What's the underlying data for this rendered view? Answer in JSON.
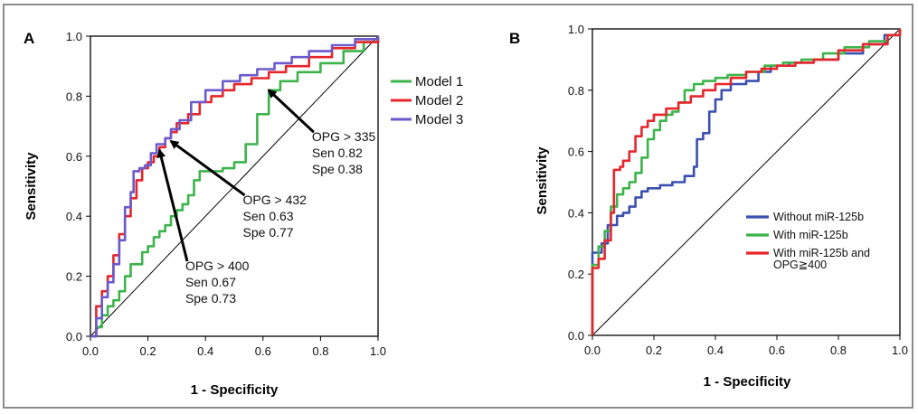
{
  "chart_data": [
    {
      "panel_label": "A",
      "type": "line",
      "xlabel": "1 - Specificity",
      "ylabel": "Sensitivity",
      "xlim": [
        0,
        1
      ],
      "ylim": [
        0,
        1
      ],
      "xticks": [
        "0.0",
        "0.2",
        "0.4",
        "0.6",
        "0.8",
        "1.0"
      ],
      "yticks": [
        "0.0",
        "0.2",
        "0.4",
        "0.6",
        "0.8",
        "1.0"
      ],
      "legend_position": "right",
      "series": [
        {
          "name": "Model 1",
          "color": "#3cb44b",
          "points": [
            [
              0,
              0
            ],
            [
              0.02,
              0.03
            ],
            [
              0.04,
              0.07
            ],
            [
              0.06,
              0.1
            ],
            [
              0.08,
              0.12
            ],
            [
              0.1,
              0.15
            ],
            [
              0.12,
              0.2
            ],
            [
              0.14,
              0.24
            ],
            [
              0.16,
              0.24
            ],
            [
              0.18,
              0.28
            ],
            [
              0.2,
              0.3
            ],
            [
              0.22,
              0.33
            ],
            [
              0.24,
              0.35
            ],
            [
              0.26,
              0.37
            ],
            [
              0.28,
              0.4
            ],
            [
              0.3,
              0.42
            ],
            [
              0.32,
              0.44
            ],
            [
              0.34,
              0.47
            ],
            [
              0.36,
              0.52
            ],
            [
              0.38,
              0.55
            ],
            [
              0.42,
              0.55
            ],
            [
              0.46,
              0.56
            ],
            [
              0.5,
              0.58
            ],
            [
              0.54,
              0.64
            ],
            [
              0.58,
              0.74
            ],
            [
              0.62,
              0.82
            ],
            [
              0.66,
              0.85
            ],
            [
              0.72,
              0.88
            ],
            [
              0.8,
              0.91
            ],
            [
              0.88,
              0.95
            ],
            [
              0.95,
              0.98
            ],
            [
              1,
              1
            ]
          ]
        },
        {
          "name": "Model 2",
          "color": "#e6262b",
          "points": [
            [
              0,
              0
            ],
            [
              0.02,
              0.1
            ],
            [
              0.04,
              0.15
            ],
            [
              0.06,
              0.2
            ],
            [
              0.08,
              0.27
            ],
            [
              0.1,
              0.34
            ],
            [
              0.12,
              0.4
            ],
            [
              0.14,
              0.46
            ],
            [
              0.16,
              0.52
            ],
            [
              0.18,
              0.56
            ],
            [
              0.2,
              0.58
            ],
            [
              0.22,
              0.6
            ],
            [
              0.24,
              0.63
            ],
            [
              0.26,
              0.66
            ],
            [
              0.28,
              0.68
            ],
            [
              0.3,
              0.71
            ],
            [
              0.34,
              0.74
            ],
            [
              0.38,
              0.78
            ],
            [
              0.42,
              0.8
            ],
            [
              0.46,
              0.82
            ],
            [
              0.5,
              0.84
            ],
            [
              0.56,
              0.86
            ],
            [
              0.62,
              0.88
            ],
            [
              0.68,
              0.9
            ],
            [
              0.76,
              0.93
            ],
            [
              0.84,
              0.96
            ],
            [
              0.92,
              0.98
            ],
            [
              1,
              1
            ]
          ]
        },
        {
          "name": "Model 3",
          "color": "#6a5acd",
          "points": [
            [
              0,
              0
            ],
            [
              0.02,
              0.06
            ],
            [
              0.04,
              0.13
            ],
            [
              0.06,
              0.18
            ],
            [
              0.08,
              0.24
            ],
            [
              0.1,
              0.32
            ],
            [
              0.12,
              0.43
            ],
            [
              0.14,
              0.48
            ],
            [
              0.15,
              0.55
            ],
            [
              0.17,
              0.56
            ],
            [
              0.19,
              0.57
            ],
            [
              0.21,
              0.61
            ],
            [
              0.23,
              0.64
            ],
            [
              0.26,
              0.66
            ],
            [
              0.28,
              0.69
            ],
            [
              0.31,
              0.72
            ],
            [
              0.35,
              0.78
            ],
            [
              0.4,
              0.82
            ],
            [
              0.46,
              0.85
            ],
            [
              0.52,
              0.87
            ],
            [
              0.58,
              0.89
            ],
            [
              0.64,
              0.91
            ],
            [
              0.7,
              0.93
            ],
            [
              0.76,
              0.95
            ],
            [
              0.84,
              0.97
            ],
            [
              0.92,
              0.99
            ],
            [
              1,
              1
            ]
          ]
        }
      ],
      "annotations": [
        {
          "lines": [
            "OPG > 335",
            "Sen 0.82",
            "Spe 0.38"
          ],
          "target": [
            0.62,
            0.82
          ],
          "text_at": [
            0.77,
            0.65
          ]
        },
        {
          "lines": [
            "OPG > 432",
            "Sen 0.63",
            "Spe 0.77"
          ],
          "target": [
            0.28,
            0.65
          ],
          "text_at": [
            0.53,
            0.44
          ]
        },
        {
          "lines": [
            "OPG > 400",
            "Sen 0.67",
            "Spe 0.73"
          ],
          "target": [
            0.24,
            0.62
          ],
          "text_at": [
            0.33,
            0.22
          ]
        }
      ]
    },
    {
      "panel_label": "B",
      "type": "line",
      "xlabel": "1 - Specificity",
      "ylabel": "Sensitivity",
      "xlim": [
        0,
        1
      ],
      "ylim": [
        0,
        1
      ],
      "xticks": [
        "0.0",
        "0.2",
        "0.4",
        "0.6",
        "0.8",
        "1.0"
      ],
      "yticks": [
        "0.0",
        "0.2",
        "0.4",
        "0.6",
        "0.8",
        "1.0"
      ],
      "legend_position": "bottom-right",
      "series": [
        {
          "name": "Without miR-125b",
          "color": "#3a4fb0",
          "points": [
            [
              0,
              0
            ],
            [
              0,
              0.27
            ],
            [
              0.03,
              0.3
            ],
            [
              0.05,
              0.36
            ],
            [
              0.08,
              0.39
            ],
            [
              0.1,
              0.4
            ],
            [
              0.12,
              0.42
            ],
            [
              0.14,
              0.45
            ],
            [
              0.16,
              0.47
            ],
            [
              0.18,
              0.48
            ],
            [
              0.22,
              0.49
            ],
            [
              0.26,
              0.5
            ],
            [
              0.3,
              0.52
            ],
            [
              0.33,
              0.55
            ],
            [
              0.34,
              0.64
            ],
            [
              0.36,
              0.66
            ],
            [
              0.38,
              0.73
            ],
            [
              0.4,
              0.77
            ],
            [
              0.42,
              0.8
            ],
            [
              0.45,
              0.82
            ],
            [
              0.5,
              0.83
            ],
            [
              0.54,
              0.86
            ],
            [
              0.58,
              0.88
            ],
            [
              0.64,
              0.89
            ],
            [
              0.72,
              0.9
            ],
            [
              0.8,
              0.92
            ],
            [
              0.88,
              0.95
            ],
            [
              0.95,
              0.98
            ],
            [
              1,
              1
            ]
          ]
        },
        {
          "name": "With miR-125b",
          "color": "#3cb44b",
          "points": [
            [
              0,
              0
            ],
            [
              0,
              0.23
            ],
            [
              0.02,
              0.29
            ],
            [
              0.04,
              0.34
            ],
            [
              0.06,
              0.42
            ],
            [
              0.08,
              0.46
            ],
            [
              0.1,
              0.48
            ],
            [
              0.12,
              0.5
            ],
            [
              0.14,
              0.53
            ],
            [
              0.16,
              0.58
            ],
            [
              0.18,
              0.64
            ],
            [
              0.2,
              0.67
            ],
            [
              0.22,
              0.7
            ],
            [
              0.24,
              0.72
            ],
            [
              0.26,
              0.73
            ],
            [
              0.28,
              0.76
            ],
            [
              0.3,
              0.8
            ],
            [
              0.33,
              0.82
            ],
            [
              0.36,
              0.83
            ],
            [
              0.4,
              0.84
            ],
            [
              0.44,
              0.85
            ],
            [
              0.5,
              0.86
            ],
            [
              0.56,
              0.88
            ],
            [
              0.62,
              0.89
            ],
            [
              0.68,
              0.9
            ],
            [
              0.75,
              0.92
            ],
            [
              0.82,
              0.94
            ],
            [
              0.9,
              0.96
            ],
            [
              0.96,
              0.98
            ],
            [
              1,
              1
            ]
          ]
        },
        {
          "name": "With miR-125b and OPG≧400",
          "color": "#e6262b",
          "points": [
            [
              0,
              0
            ],
            [
              0,
              0.22
            ],
            [
              0.02,
              0.25
            ],
            [
              0.04,
              0.31
            ],
            [
              0.06,
              0.4
            ],
            [
              0.07,
              0.54
            ],
            [
              0.09,
              0.55
            ],
            [
              0.1,
              0.57
            ],
            [
              0.12,
              0.6
            ],
            [
              0.14,
              0.65
            ],
            [
              0.16,
              0.68
            ],
            [
              0.18,
              0.7
            ],
            [
              0.2,
              0.72
            ],
            [
              0.24,
              0.74
            ],
            [
              0.28,
              0.76
            ],
            [
              0.32,
              0.78
            ],
            [
              0.36,
              0.8
            ],
            [
              0.4,
              0.82
            ],
            [
              0.45,
              0.84
            ],
            [
              0.5,
              0.86
            ],
            [
              0.55,
              0.87
            ],
            [
              0.6,
              0.88
            ],
            [
              0.66,
              0.89
            ],
            [
              0.72,
              0.9
            ],
            [
              0.8,
              0.93
            ],
            [
              0.88,
              0.95
            ],
            [
              0.96,
              0.98
            ],
            [
              1,
              1
            ]
          ]
        }
      ]
    }
  ]
}
